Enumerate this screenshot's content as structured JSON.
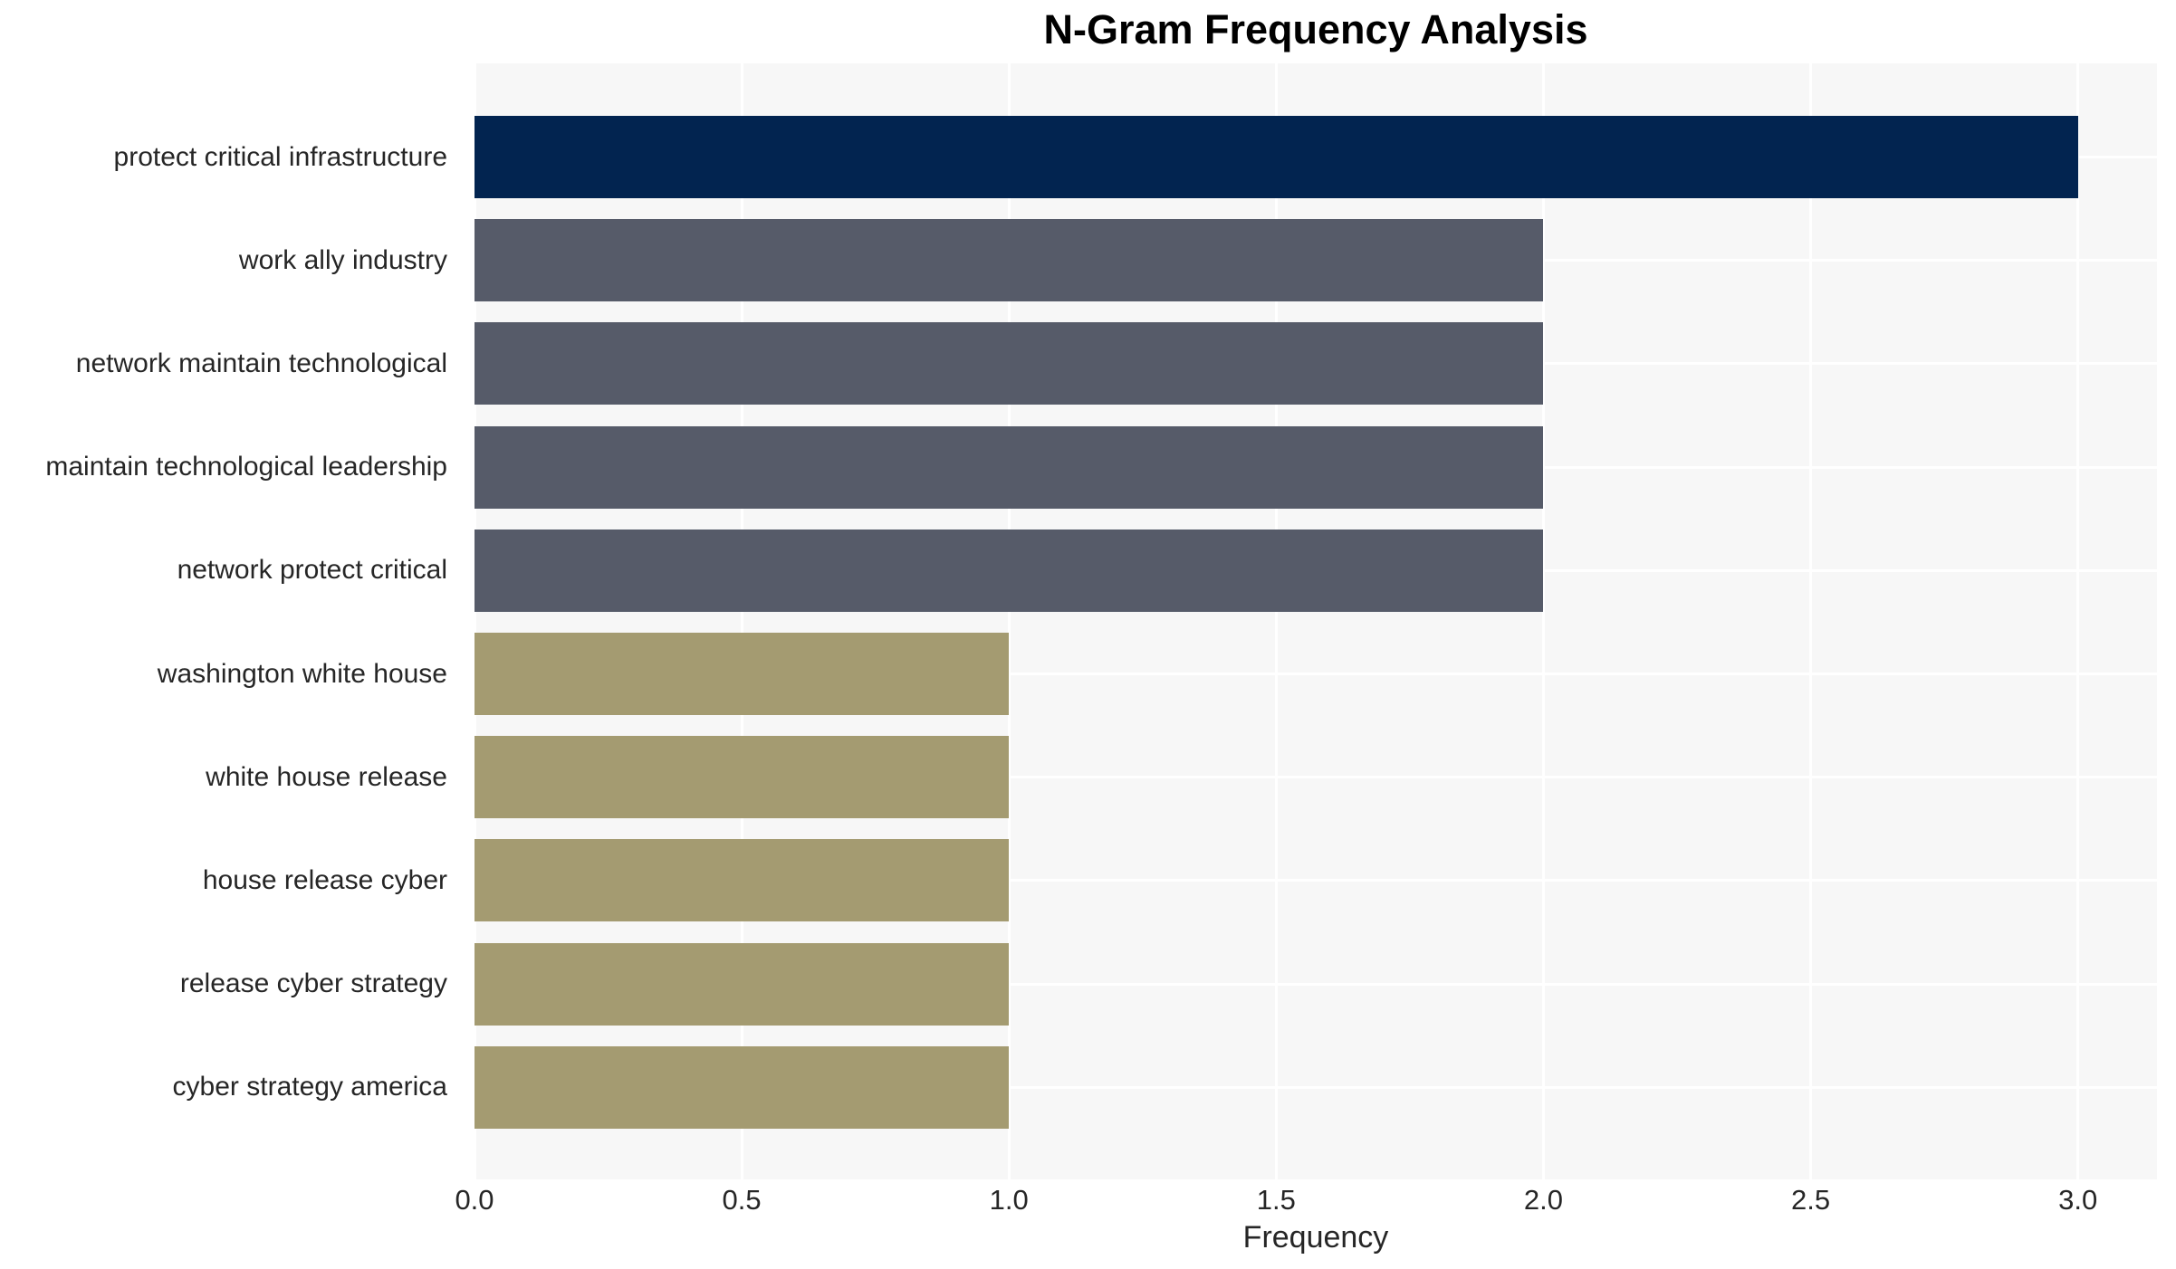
{
  "figure": {
    "title": "N-Gram Frequency Analysis"
  },
  "chart_data": {
    "type": "bar",
    "orientation": "horizontal",
    "title": "N-Gram Frequency Analysis",
    "xlabel": "Frequency",
    "ylabel": "",
    "categories": [
      "protect critical infrastructure",
      "work ally industry",
      "network maintain technological",
      "maintain technological leadership",
      "network protect critical",
      "washington white house",
      "white house release",
      "house release cyber",
      "release cyber strategy",
      "cyber strategy america"
    ],
    "values": [
      3,
      2,
      2,
      2,
      2,
      1,
      1,
      1,
      1,
      1
    ],
    "bar_colors": [
      "#022450",
      "#565B69",
      "#565B69",
      "#565B69",
      "#565B69",
      "#A49B71",
      "#A49B71",
      "#A49B71",
      "#A49B71",
      "#A49B71"
    ],
    "xlim": [
      0,
      3.148
    ],
    "xtick_values": [
      0.0,
      0.5,
      1.0,
      1.5,
      2.0,
      2.5,
      3.0
    ],
    "xtick_labels": [
      "0.0",
      "0.5",
      "1.0",
      "1.5",
      "2.0",
      "2.5",
      "3.0"
    ],
    "grid": true,
    "legend": false,
    "plot_background": "#F7F7F7",
    "grid_color": "#FFFFFF"
  },
  "colors": {
    "navy": "#022450",
    "slate": "#565B69",
    "khaki": "#A49B71",
    "plot_bg": "#F7F7F7",
    "grid": "#FFFFFF",
    "text": "#262626",
    "page_bg": "#FFFFFF"
  }
}
